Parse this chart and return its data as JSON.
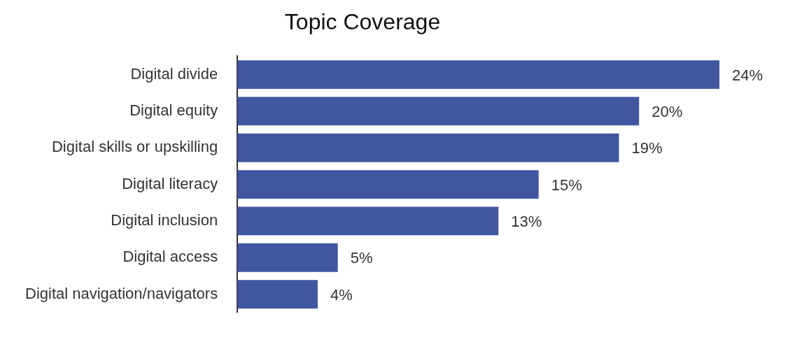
{
  "chart_data": {
    "type": "bar",
    "orientation": "horizontal",
    "title": "Topic Coverage",
    "categories": [
      "Digital divide",
      "Digital equity",
      "Digital skills or upskilling",
      "Digital literacy",
      "Digital inclusion",
      "Digital access",
      "Digital navigation/navigators"
    ],
    "values": [
      24,
      20,
      19,
      15,
      13,
      5,
      4
    ],
    "value_labels": [
      "24%",
      "20%",
      "19%",
      "15%",
      "13%",
      "5%",
      "4%"
    ],
    "color": "#4057a0",
    "xlim": [
      0,
      24
    ],
    "tick_labels": "y",
    "legend": false
  }
}
